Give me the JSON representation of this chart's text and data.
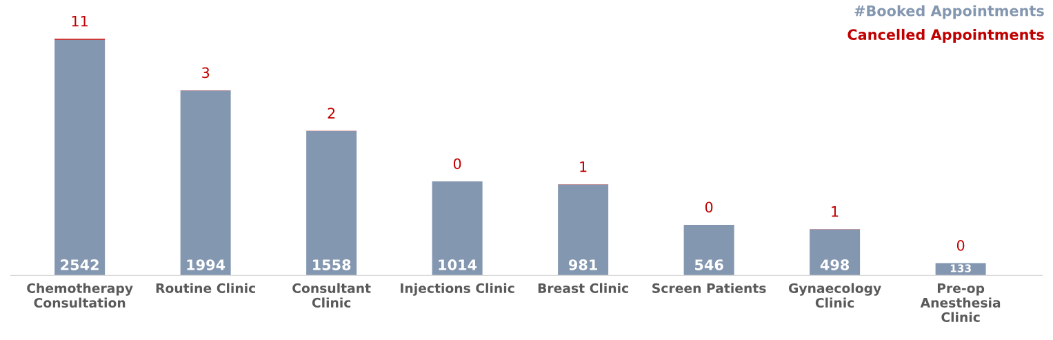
{
  "chart_data": {
    "type": "bar",
    "stacked": true,
    "data_labels": true,
    "legend": "top right",
    "grid": false,
    "categories": [
      "Chemotherapy\nConsultation",
      "Routine Clinic",
      "Consultant\nClinic",
      "Injections Clinic",
      "Breast Clinic",
      "Screen Patients",
      "Gynaecology\nClinic",
      "Pre-op\nAnesthesia\nClinic"
    ],
    "series": [
      {
        "name": "#Booked Appointments",
        "color": "#8497b0",
        "values": [
          2542,
          1994,
          1558,
          1014,
          981,
          546,
          498,
          133
        ]
      },
      {
        "name": "Cancelled Appointments",
        "color": "#c00000",
        "values": [
          11,
          3,
          2,
          0,
          1,
          0,
          1,
          0
        ]
      }
    ]
  }
}
